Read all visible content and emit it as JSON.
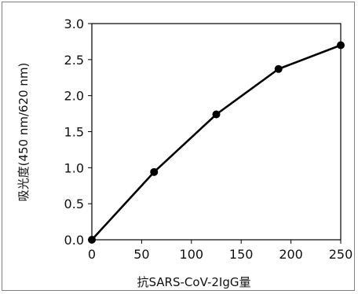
{
  "chart_data": {
    "type": "line",
    "title": "",
    "xlabel": "抗SARS-CoV-2IgG量",
    "ylabel": "吸光度(450 nm/620 nm)",
    "xlim": [
      0,
      250
    ],
    "ylim": [
      0,
      3.0
    ],
    "x_ticks": [
      "0",
      "50",
      "100",
      "150",
      "200",
      "250"
    ],
    "y_ticks": [
      "0.0",
      "0.5",
      "1.0",
      "1.5",
      "2.0",
      "2.5",
      "3.0"
    ],
    "grid": false,
    "legend": "none",
    "series": [
      {
        "x": [
          0,
          62.5,
          125,
          187.5,
          250
        ],
        "y": [
          0.0,
          0.94,
          1.74,
          2.37,
          2.7
        ]
      }
    ],
    "line_color": "#000000",
    "plot_background": "#ffffff"
  }
}
